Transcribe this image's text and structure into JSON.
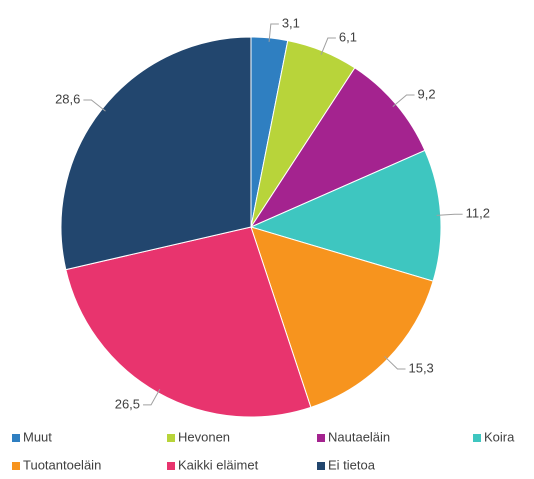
{
  "chart_data": {
    "type": "pie",
    "categories": [
      "Muut",
      "Hevonen",
      "Nautaeläin",
      "Koira",
      "Tuotantoeläin",
      "Kaikki eläimet",
      "Ei tietoa"
    ],
    "values": [
      3.1,
      6.1,
      9.2,
      11.2,
      15.3,
      26.5,
      28.6
    ],
    "value_labels": [
      "3,1",
      "6,1",
      "9,2",
      "11,2",
      "15,3",
      "26,5",
      "28,6"
    ],
    "colors": [
      "#2f7fc1",
      "#b8d43a",
      "#a4238f",
      "#3ec6c0",
      "#f7941e",
      "#e8346e",
      "#22466e"
    ],
    "legend": "bottom"
  }
}
